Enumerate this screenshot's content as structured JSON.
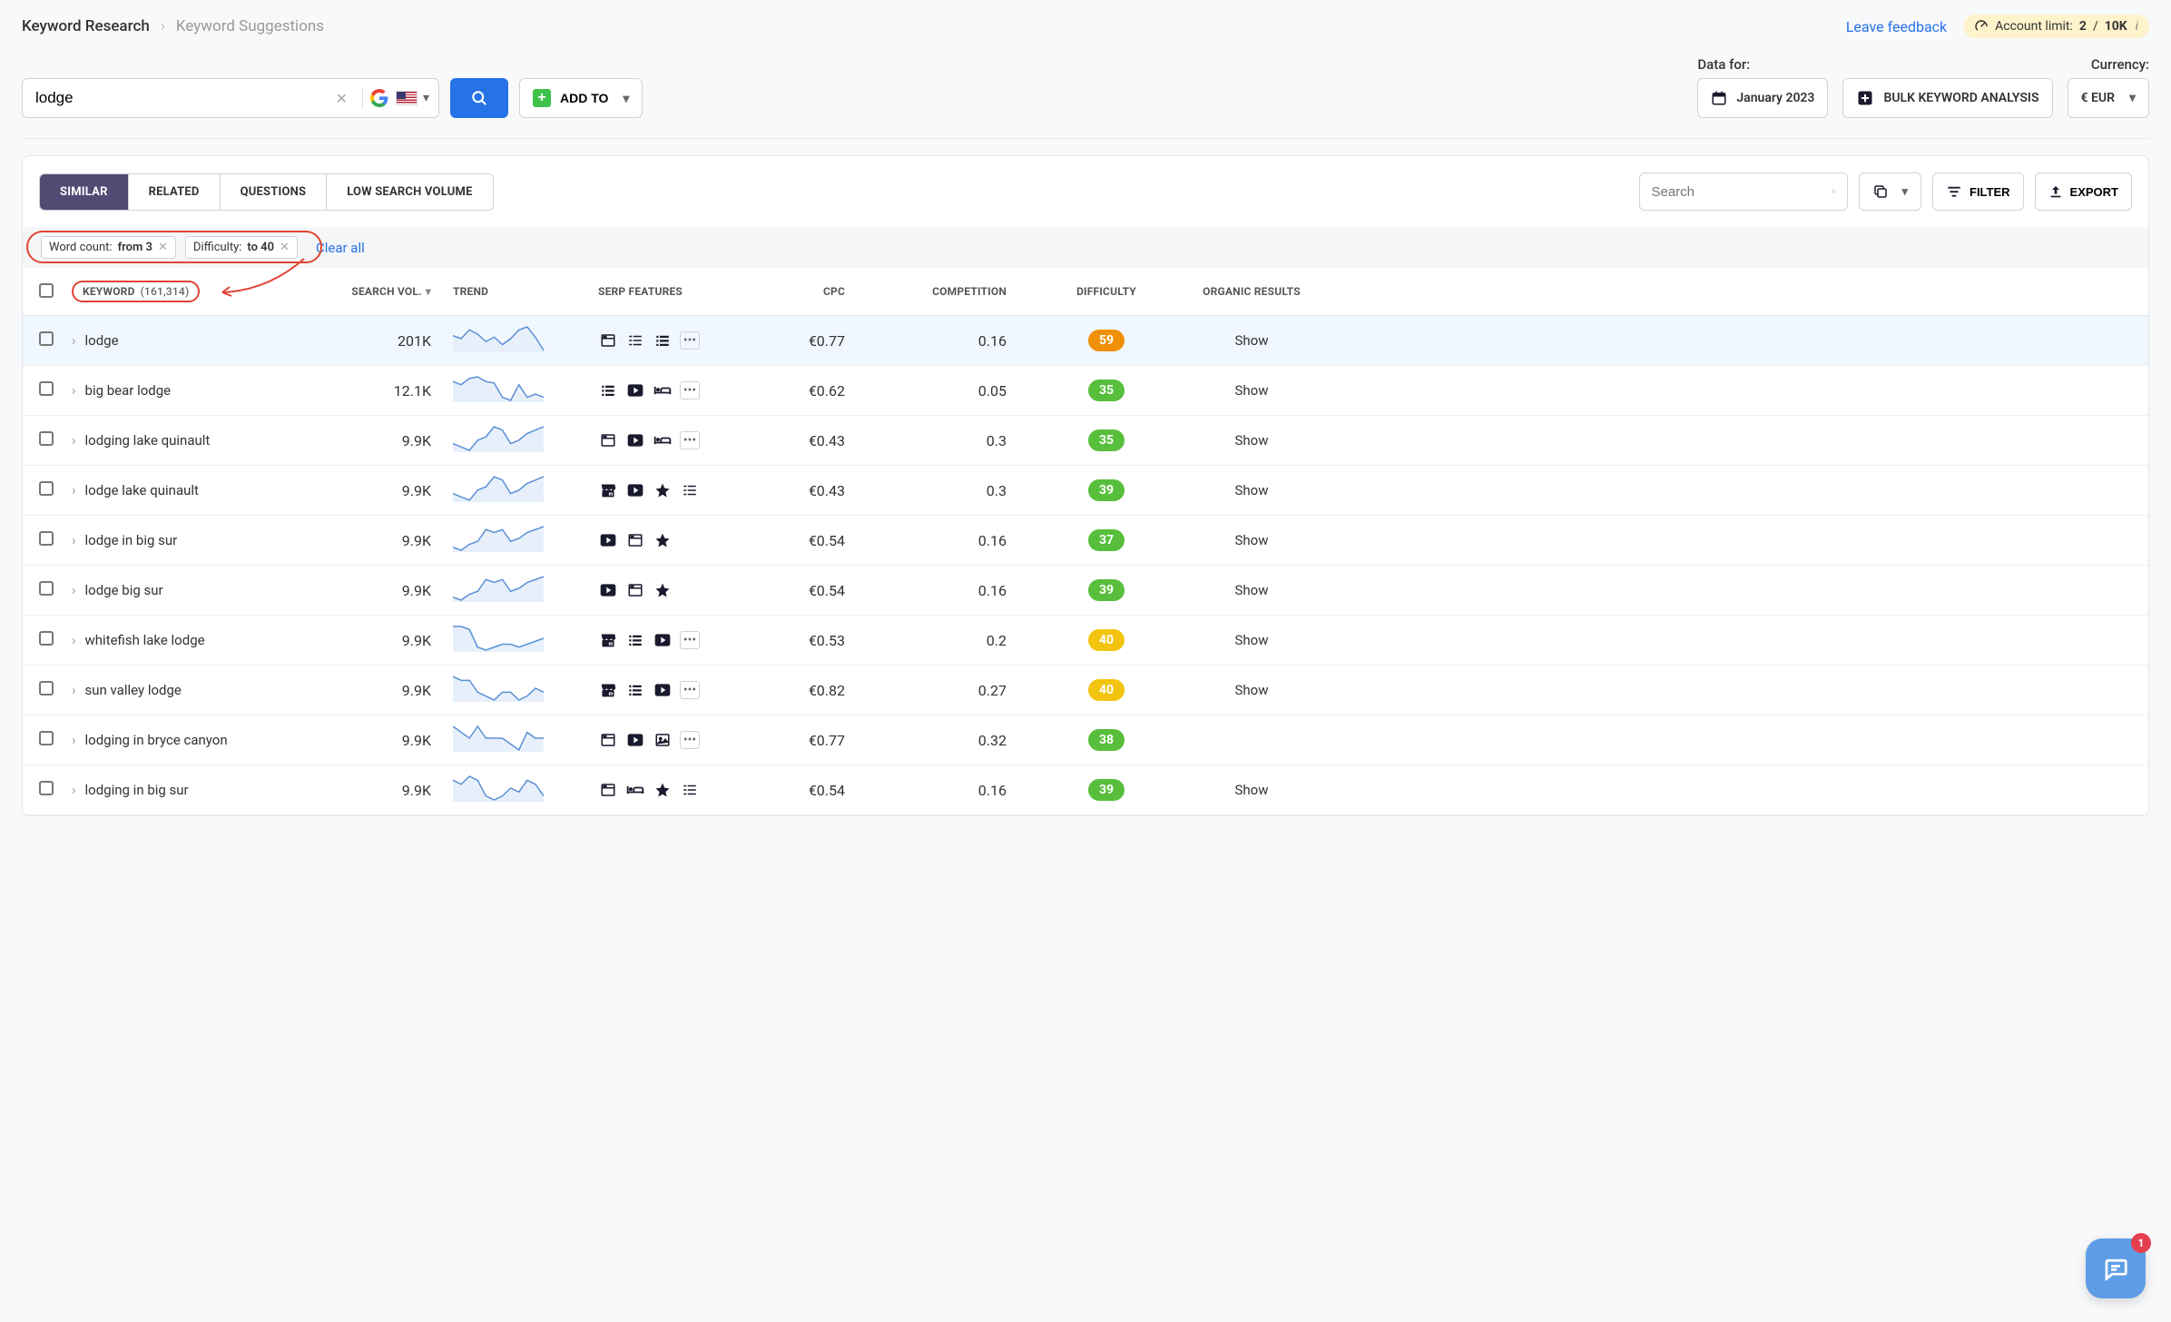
{
  "breadcrumb": {
    "root": "Keyword Research",
    "leaf": "Keyword Suggestions"
  },
  "feedback": "Leave feedback",
  "account_limit": {
    "label": "Account limit:",
    "used": "2",
    "total": "10K"
  },
  "search_value": "lodge",
  "addto_label": "ADD TO",
  "data_for": {
    "label": "Data for:",
    "value": "January 2023"
  },
  "bulk_label": "BULK KEYWORD ANALYSIS",
  "currency": {
    "label": "Currency:",
    "value": "€ EUR"
  },
  "tabs": [
    "SIMILAR",
    "RELATED",
    "QUESTIONS",
    "LOW SEARCH VOLUME"
  ],
  "active_tab": 0,
  "table_search_placeholder": "Search",
  "filter_label": "FILTER",
  "export_label": "EXPORT",
  "chips": [
    {
      "label": "Word count:",
      "value": "from 3"
    },
    {
      "label": "Difficulty:",
      "value": "to 40"
    }
  ],
  "clear_all": "Clear all",
  "columns": {
    "keyword": "KEYWORD",
    "count": "(161,314)",
    "vol": "SEARCH VOL.",
    "trend": "TREND",
    "serp": "SERP FEATURES",
    "cpc": "CPC",
    "comp": "COMPETITION",
    "diff": "DIFFICULTY",
    "org": "ORGANIC RESULTS"
  },
  "show_label": "Show",
  "diff_colors": {
    "green": "#57bf3b",
    "orange": "#f09008",
    "yellow": "#f3c40f"
  },
  "trend_stroke": "#5a8fd6",
  "trend_fill": "#e7f0fa",
  "rows": [
    {
      "kw": "lodge",
      "vol": "201K",
      "trend": [
        18,
        16,
        22,
        19,
        14,
        17,
        12,
        16,
        22,
        24,
        17,
        8
      ],
      "serp": [
        "window",
        "list",
        "listalt",
        "more"
      ],
      "cpc": "€0.77",
      "comp": "0.16",
      "diff": 59,
      "diffc": "orange",
      "org": "Show",
      "selected": true
    },
    {
      "kw": "big bear lodge",
      "vol": "12.1K",
      "trend": [
        20,
        18,
        22,
        23,
        20,
        19,
        10,
        8,
        18,
        10,
        12,
        10
      ],
      "serp": [
        "listalt",
        "video",
        "hotel",
        "more"
      ],
      "cpc": "€0.62",
      "comp": "0.05",
      "diff": 35,
      "diffc": "green",
      "org": "Show"
    },
    {
      "kw": "lodging lake quinault",
      "vol": "9.9K",
      "trend": [
        12,
        10,
        8,
        14,
        16,
        22,
        20,
        12,
        14,
        18,
        20,
        22
      ],
      "serp": [
        "window",
        "video",
        "hotel",
        "more"
      ],
      "cpc": "€0.43",
      "comp": "0.3",
      "diff": 35,
      "diffc": "green",
      "org": "Show"
    },
    {
      "kw": "lodge lake quinault",
      "vol": "9.9K",
      "trend": [
        12,
        10,
        8,
        14,
        16,
        22,
        20,
        12,
        14,
        18,
        20,
        22
      ],
      "serp": [
        "gbiz",
        "video",
        "star",
        "list"
      ],
      "cpc": "€0.43",
      "comp": "0.3",
      "diff": 39,
      "diffc": "green",
      "org": "Show"
    },
    {
      "kw": "lodge in big sur",
      "vol": "9.9K",
      "trend": [
        8,
        6,
        10,
        12,
        20,
        18,
        20,
        12,
        14,
        18,
        20,
        22
      ],
      "serp": [
        "video",
        "window",
        "star"
      ],
      "cpc": "€0.54",
      "comp": "0.16",
      "diff": 37,
      "diffc": "green",
      "org": "Show"
    },
    {
      "kw": "lodge big sur",
      "vol": "9.9K",
      "trend": [
        8,
        6,
        10,
        12,
        20,
        18,
        20,
        12,
        14,
        18,
        20,
        22
      ],
      "serp": [
        "video",
        "window",
        "star"
      ],
      "cpc": "€0.54",
      "comp": "0.16",
      "diff": 39,
      "diffc": "green",
      "org": "Show"
    },
    {
      "kw": "whitefish lake lodge",
      "vol": "9.9K",
      "trend": [
        22,
        22,
        20,
        8,
        6,
        8,
        10,
        10,
        8,
        10,
        12,
        14
      ],
      "serp": [
        "gbiz",
        "listalt",
        "video",
        "more"
      ],
      "cpc": "€0.53",
      "comp": "0.2",
      "diff": 40,
      "diffc": "yellow",
      "org": "Show"
    },
    {
      "kw": "sun valley lodge",
      "vol": "9.9K",
      "trend": [
        22,
        20,
        20,
        14,
        12,
        10,
        14,
        14,
        10,
        12,
        16,
        14
      ],
      "serp": [
        "gbiz",
        "listalt",
        "video",
        "more"
      ],
      "cpc": "€0.82",
      "comp": "0.27",
      "diff": 40,
      "diffc": "yellow",
      "org": "Show"
    },
    {
      "kw": "lodging in bryce canyon",
      "vol": "9.9K",
      "trend": [
        24,
        22,
        20,
        24,
        20,
        20,
        20,
        18,
        16,
        22,
        20,
        20
      ],
      "serp": [
        "window",
        "video",
        "image",
        "more"
      ],
      "cpc": "€0.77",
      "comp": "0.32",
      "diff": 38,
      "diffc": "green",
      "org": ""
    },
    {
      "kw": "lodging in big sur",
      "vol": "9.9K",
      "trend": [
        22,
        20,
        24,
        22,
        14,
        12,
        14,
        18,
        16,
        22,
        20,
        14
      ],
      "serp": [
        "window",
        "hotel",
        "star",
        "list"
      ],
      "cpc": "€0.54",
      "comp": "0.16",
      "diff": 39,
      "diffc": "green",
      "org": "Show"
    }
  ],
  "chat_badge": "1"
}
